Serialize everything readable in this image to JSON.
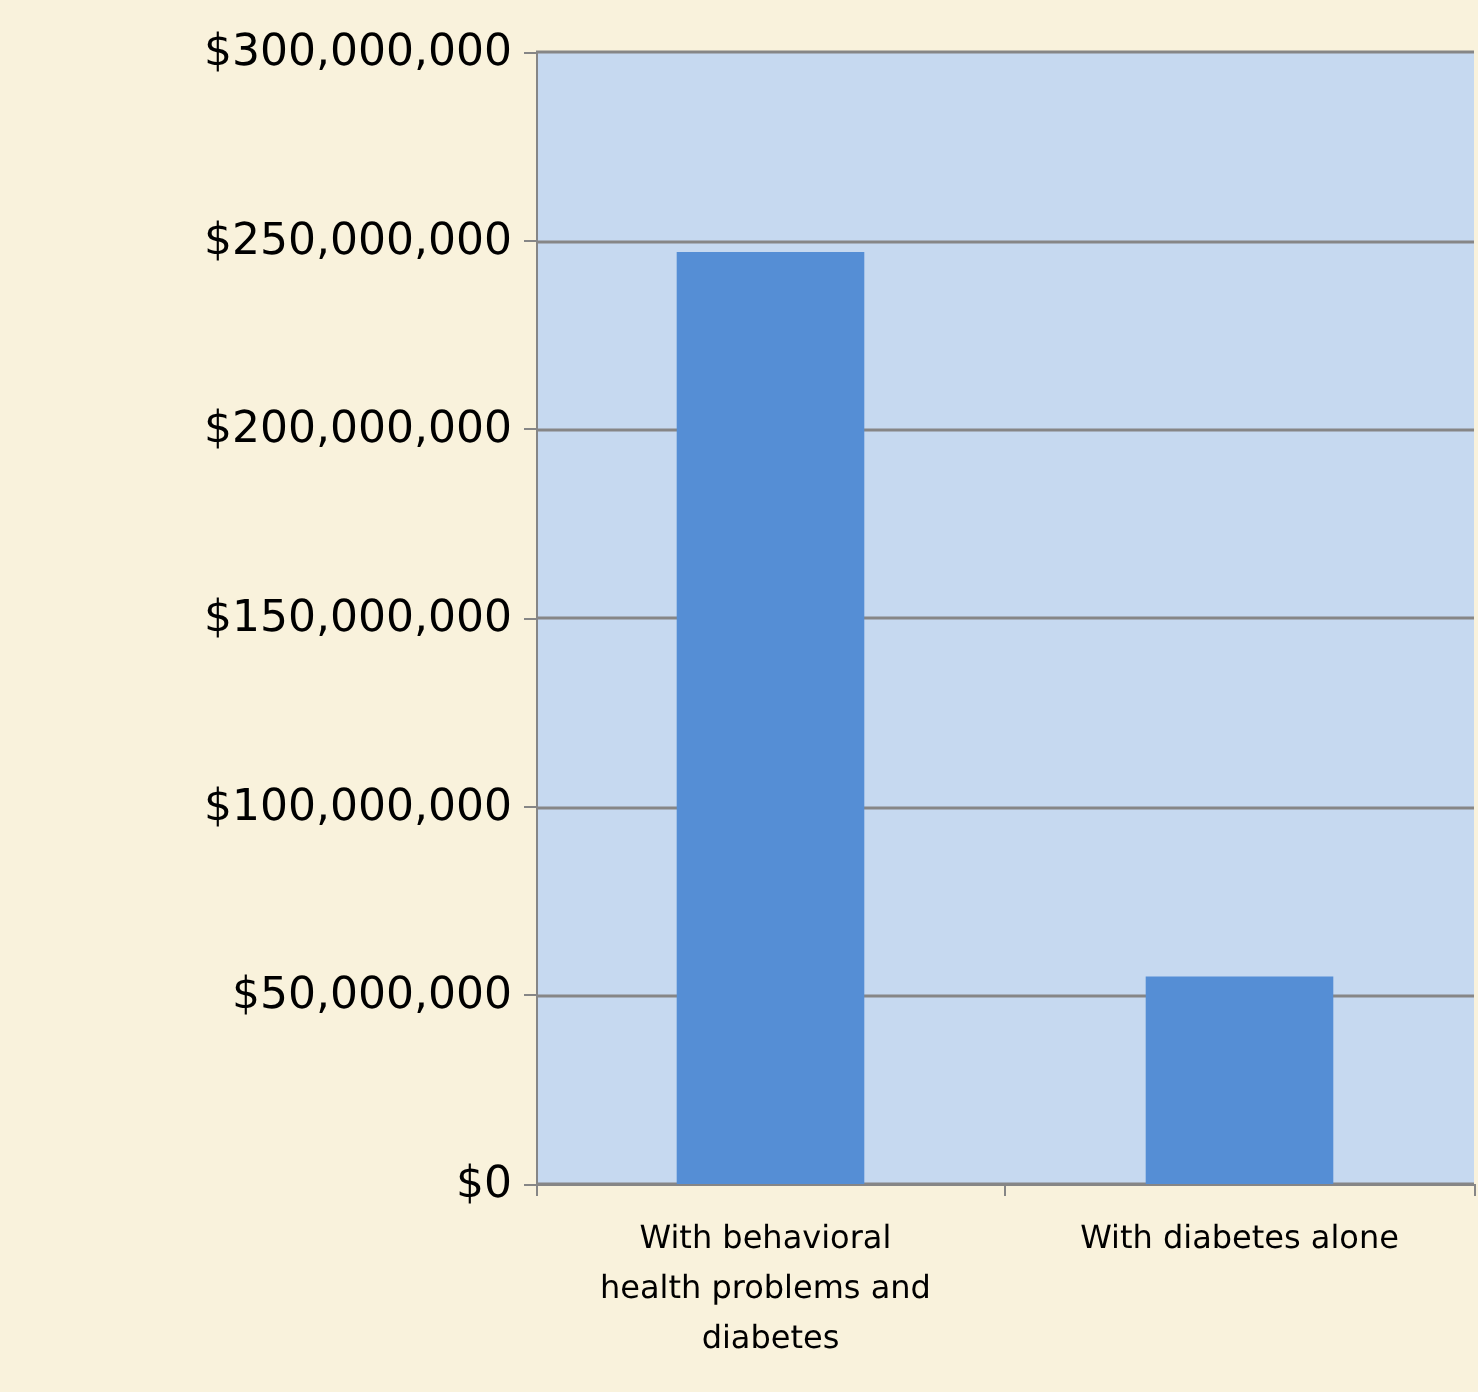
{
  "chart_data": {
    "type": "bar",
    "categories": [
      "With behavioral health problems and diabetes",
      "With diabetes alone"
    ],
    "values": [
      247000000,
      55000000
    ],
    "color": "#558ed5",
    "ylim": [
      0,
      300000000
    ],
    "yticks": [
      {
        "value": 0,
        "label": "$0"
      },
      {
        "value": 50000000,
        "label": "$50,000,000"
      },
      {
        "value": 100000000,
        "label": "$100,000,000"
      },
      {
        "value": 150000000,
        "label": "$150,000,000"
      },
      {
        "value": 200000000,
        "label": "$200,000,000"
      },
      {
        "value": 250000000,
        "label": "$250,000,000"
      },
      {
        "value": 300000000,
        "label": "$300,000,000"
      }
    ],
    "grid": "y"
  }
}
